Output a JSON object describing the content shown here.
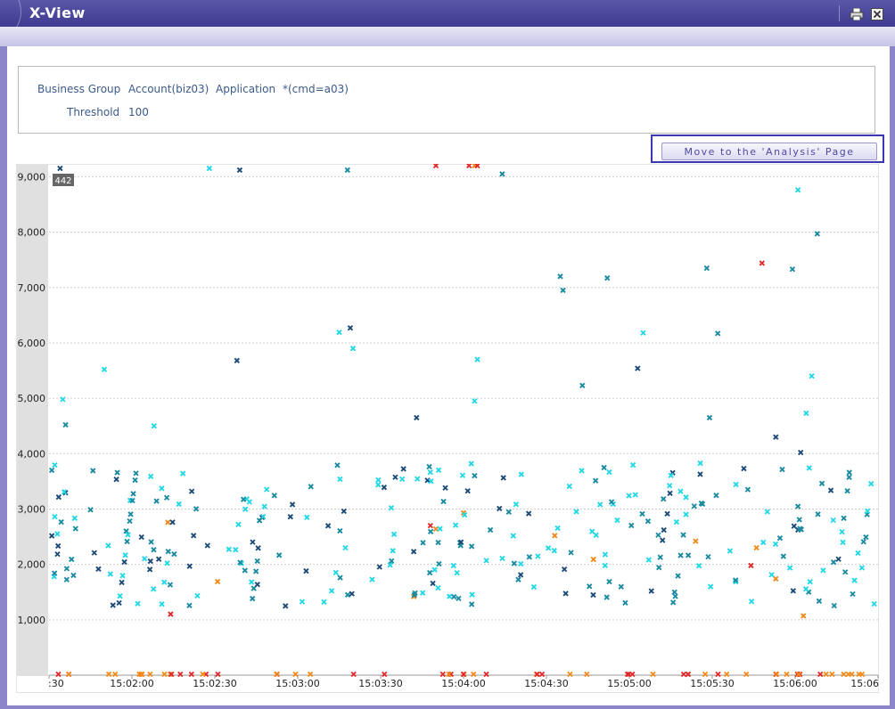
{
  "window": {
    "title": "X-View",
    "print_icon": "printer-icon",
    "close_icon": "close-icon"
  },
  "filter": {
    "business_group_label": "Business Group",
    "business_group_value": "Account(biz03)",
    "application_label": "Application",
    "application_value": "*(cmd=a03)",
    "threshold_label": "Threshold",
    "threshold_value": "100"
  },
  "analysis_button": {
    "label": "Move to the 'Analysis' Page"
  },
  "chart_data": {
    "type": "scatter",
    "title": "",
    "xlabel": "",
    "ylabel": "",
    "ylim": [
      0,
      9200
    ],
    "xlim": [
      "15:01:30",
      "15:06:30"
    ],
    "y_ticks": [
      "1,000",
      "2,000",
      "3,000",
      "4,000",
      "5,000",
      "6,000",
      "7,000",
      "8,000",
      "9,000"
    ],
    "x_ticks": [
      ":30",
      "15:02:00",
      "15:02:30",
      "15:03:00",
      "15:03:30",
      "15:04:00",
      "15:04:30",
      "15:05:00",
      "15:05:30",
      "15:06:00",
      "15:06"
    ],
    "grid": true,
    "legend": "none",
    "badge": "442",
    "colors": {
      "cyan": "#22d8e6",
      "teal": "#1a8aa0",
      "navy": "#1c4a78",
      "orange": "#f08a1a",
      "red": "#e0282a"
    },
    "sample_points": [
      {
        "x": "15:01:31",
        "y": 3700,
        "c": "teal"
      },
      {
        "x": "15:01:33",
        "y": 2550,
        "c": "cyan"
      },
      {
        "x": "15:01:35",
        "y": 4980,
        "c": "cyan"
      },
      {
        "x": "15:01:36",
        "y": 4520,
        "c": "teal"
      },
      {
        "x": "15:01:34",
        "y": 9150,
        "c": "navy"
      },
      {
        "x": "15:01:50",
        "y": 5520,
        "c": "cyan"
      },
      {
        "x": "15:02:08",
        "y": 4500,
        "c": "cyan"
      },
      {
        "x": "15:02:14",
        "y": 1100,
        "c": "red"
      },
      {
        "x": "15:02:13",
        "y": 2760,
        "c": "orange"
      },
      {
        "x": "15:02:38",
        "y": 5680,
        "c": "navy"
      },
      {
        "x": "15:02:28",
        "y": 9150,
        "c": "cyan"
      },
      {
        "x": "15:02:39",
        "y": 9120,
        "c": "navy"
      },
      {
        "x": "15:03:15",
        "y": 6190,
        "c": "cyan"
      },
      {
        "x": "15:03:19",
        "y": 6270,
        "c": "navy"
      },
      {
        "x": "15:03:20",
        "y": 5900,
        "c": "cyan"
      },
      {
        "x": "15:03:18",
        "y": 9120,
        "c": "teal"
      },
      {
        "x": "15:03:43",
        "y": 4650,
        "c": "navy"
      },
      {
        "x": "15:03:50",
        "y": 9200,
        "c": "red"
      },
      {
        "x": "15:04:02",
        "y": 9200,
        "c": "red"
      },
      {
        "x": "15:04:04",
        "y": 9200,
        "c": "orange"
      },
      {
        "x": "15:04:05",
        "y": 9200,
        "c": "red"
      },
      {
        "x": "15:04:05",
        "y": 5700,
        "c": "cyan"
      },
      {
        "x": "15:04:04",
        "y": 4950,
        "c": "cyan"
      },
      {
        "x": "15:04:14",
        "y": 9050,
        "c": "teal"
      },
      {
        "x": "15:04:35",
        "y": 7200,
        "c": "teal"
      },
      {
        "x": "15:04:36",
        "y": 6950,
        "c": "teal"
      },
      {
        "x": "15:04:43",
        "y": 5230,
        "c": "teal"
      },
      {
        "x": "15:04:52",
        "y": 7170,
        "c": "teal"
      },
      {
        "x": "15:05:03",
        "y": 5540,
        "c": "navy"
      },
      {
        "x": "15:05:05",
        "y": 6180,
        "c": "cyan"
      },
      {
        "x": "15:05:28",
        "y": 7350,
        "c": "teal"
      },
      {
        "x": "15:05:32",
        "y": 6170,
        "c": "teal"
      },
      {
        "x": "15:05:29",
        "y": 4650,
        "c": "teal"
      },
      {
        "x": "15:05:48",
        "y": 7440,
        "c": "red"
      },
      {
        "x": "15:05:53",
        "y": 4300,
        "c": "navy"
      },
      {
        "x": "15:06:01",
        "y": 8760,
        "c": "cyan"
      },
      {
        "x": "15:05:59",
        "y": 7330,
        "c": "teal"
      },
      {
        "x": "15:06:04",
        "y": 4730,
        "c": "cyan"
      },
      {
        "x": "15:06:06",
        "y": 5400,
        "c": "cyan"
      },
      {
        "x": "15:06:08",
        "y": 7970,
        "c": "teal"
      },
      {
        "x": "15:06:02",
        "y": 4020,
        "c": "navy"
      },
      {
        "x": "15:05:53",
        "y": 1740,
        "c": "orange"
      },
      {
        "x": "15:06:03",
        "y": 1070,
        "c": "orange"
      },
      {
        "x": "15:05:44",
        "y": 1980,
        "c": "red"
      },
      {
        "x": "15:03:48",
        "y": 2700,
        "c": "red"
      },
      {
        "x": "15:03:50",
        "y": 2640,
        "c": "orange"
      },
      {
        "x": "15:04:00",
        "y": 2930,
        "c": "orange"
      },
      {
        "x": "15:04:33",
        "y": 2520,
        "c": "orange"
      },
      {
        "x": "15:04:47",
        "y": 2090,
        "c": "orange"
      },
      {
        "x": "15:05:24",
        "y": 2420,
        "c": "orange"
      },
      {
        "x": "15:05:46",
        "y": 2300,
        "c": "orange"
      },
      {
        "x": "15:03:42",
        "y": 1420,
        "c": "orange"
      },
      {
        "x": "15:02:31",
        "y": 1690,
        "c": "orange"
      }
    ]
  }
}
